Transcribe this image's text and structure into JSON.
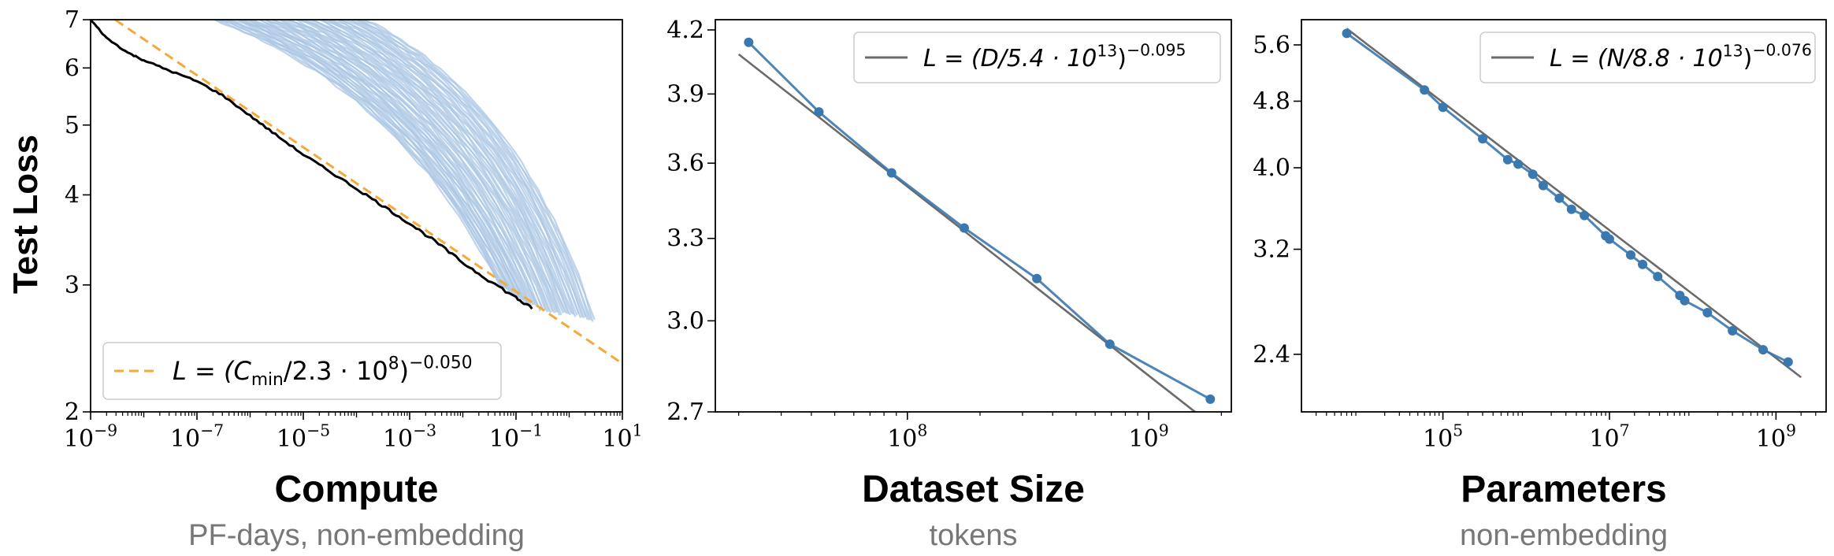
{
  "figure": {
    "ylabel": "Test Loss",
    "colors": {
      "run_curves": "#a9c6e3",
      "frontier": "#000000",
      "fit_orange": "#f5a93a",
      "points": "#3a78b0",
      "fit_gray": "#6b6b6b",
      "subtitle": "#777777"
    }
  },
  "chart_data": [
    {
      "type": "line",
      "panel": "compute",
      "xlabel": "Compute",
      "xsublabel": "PF-days, non-embedding",
      "xscale": "log",
      "yscale": "log",
      "xlim": [
        1e-09,
        10
      ],
      "ylim": [
        2,
        7
      ],
      "xticks": [
        1e-09,
        1e-07,
        1e-05,
        0.001,
        0.1,
        10
      ],
      "xtick_mantissa": [
        "10",
        "10",
        "10",
        "10",
        "10",
        "10"
      ],
      "xtick_exponents": [
        "−9",
        "−7",
        "−5",
        "−3",
        "−1",
        "1"
      ],
      "yticks": [
        2,
        3,
        4,
        5,
        6,
        7
      ],
      "ytick_labels": [
        "2",
        "3",
        "4",
        "5",
        "6",
        "7"
      ],
      "legend": {
        "position": "lower-left",
        "prefix": "L = (C",
        "subscript": "min",
        "middle": "/2.3 · 10",
        "middle_sup": "8",
        "suffix": ")",
        "exponent": "−0.050"
      },
      "fit": {
        "coefficient": 230000000.0,
        "exponent": -0.05,
        "x_range": [
          1e-09,
          10
        ]
      },
      "frontier": {
        "x": [
          1e-09,
          2e-09,
          5e-09,
          1e-08,
          3e-08,
          1e-07,
          3e-07,
          1e-06,
          3e-06,
          1e-05,
          3e-05,
          0.0001,
          0.0003,
          0.001,
          0.003,
          0.01,
          0.03,
          0.1,
          0.2
        ],
        "y": [
          7.0,
          6.6,
          6.3,
          6.15,
          5.95,
          5.75,
          5.5,
          5.15,
          4.85,
          4.55,
          4.32,
          4.08,
          3.87,
          3.65,
          3.45,
          3.22,
          3.05,
          2.88,
          2.78
        ]
      },
      "runs_count": 55,
      "runs_end_x": [
        0.05,
        3.0
      ]
    },
    {
      "type": "line",
      "panel": "dataset",
      "xlabel": "Dataset Size",
      "xsublabel": "tokens",
      "xscale": "log",
      "yscale": "log",
      "xlim": [
        16000000.0,
        2200000000.0
      ],
      "ylim": [
        2.7,
        4.25
      ],
      "xticks": [
        100000000.0,
        1000000000.0
      ],
      "xtick_mantissa": [
        "10",
        "10"
      ],
      "xtick_exponents": [
        "8",
        "9"
      ],
      "yticks": [
        2.7,
        3.0,
        3.3,
        3.6,
        3.9,
        4.2
      ],
      "ytick_labels": [
        "2.7",
        "3.0",
        "3.3",
        "3.6",
        "3.9",
        "4.2"
      ],
      "legend": {
        "position": "top-right",
        "prefix": "L = (D/5.4 · 10",
        "middle_sup": "13",
        "suffix": ")",
        "exponent": "−0.095"
      },
      "fit": {
        "coefficient": 54000000000000.0,
        "exponent": -0.095,
        "x_range": [
          20000000.0,
          2000000000.0
        ]
      },
      "series": [
        {
          "x": [
            22000000.0,
            43000000.0,
            86000000.0,
            172000000.0,
            344000000.0,
            690000000.0,
            1800000000.0
          ],
          "y": [
            4.14,
            3.82,
            3.56,
            3.34,
            3.15,
            2.92,
            2.74
          ]
        }
      ]
    },
    {
      "type": "line",
      "panel": "parameters",
      "xlabel": "Parameters",
      "xsublabel": "non-embedding",
      "xscale": "log",
      "yscale": "log",
      "xlim": [
        2000.0,
        4000000000.0
      ],
      "ylim": [
        2.05,
        6.0
      ],
      "xticks": [
        100000.0,
        10000000.0,
        1000000000.0
      ],
      "xtick_mantissa": [
        "10",
        "10",
        "10"
      ],
      "xtick_exponents": [
        "5",
        "7",
        "9"
      ],
      "yticks": [
        2.4,
        3.2,
        4.0,
        4.8,
        5.6
      ],
      "ytick_labels": [
        "2.4",
        "3.2",
        "4.0",
        "4.8",
        "5.6"
      ],
      "legend": {
        "position": "top-right",
        "prefix": "L = (N/8.8 · 10",
        "middle_sup": "13",
        "suffix": ")",
        "exponent": "−0.076"
      },
      "fit": {
        "coefficient": 88000000000000.0,
        "exponent": -0.076,
        "x_range": [
          7000.0,
          2000000000.0
        ]
      },
      "series": [
        {
          "x": [
            7000.0,
            60000.0,
            100000.0,
            300000.0,
            600000.0,
            800000.0,
            1200000.0,
            1600000.0,
            2500000.0,
            3500000.0,
            5000000.0,
            9000000.0,
            10000000.0,
            18000000.0,
            25000000.0,
            38000000.0,
            70000000.0,
            80000000.0,
            150000000.0,
            300000000.0,
            700000000.0,
            1400000000.0
          ],
          "y": [
            5.78,
            4.95,
            4.72,
            4.33,
            4.09,
            4.04,
            3.93,
            3.81,
            3.68,
            3.57,
            3.51,
            3.32,
            3.29,
            3.15,
            3.07,
            2.97,
            2.82,
            2.78,
            2.69,
            2.56,
            2.43,
            2.35
          ]
        }
      ]
    }
  ]
}
